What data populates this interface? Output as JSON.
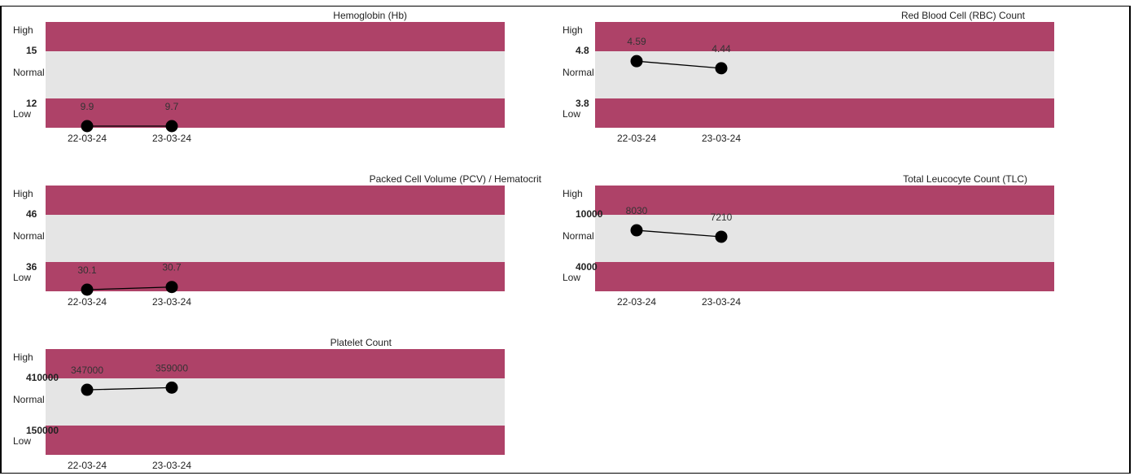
{
  "colors": {
    "band_out_of_range": "#ae4268",
    "band_normal": "#e5e5e5",
    "line": "#000000",
    "dot": "#000000"
  },
  "chart_data": [
    {
      "type": "line",
      "title": "Hemoglobin (Hb)",
      "high_label": "High",
      "normal_label": "Normal",
      "low_label": "Low",
      "upper_limit": "15",
      "lower_limit": "12",
      "categories": [
        "22-03-24",
        "23-03-24"
      ],
      "values": [
        9.9,
        9.7
      ],
      "value_labels": [
        "9.9",
        "9.7"
      ]
    },
    {
      "type": "line",
      "title": "Red Blood Cell (RBC) Count",
      "high_label": "High",
      "normal_label": "Normal",
      "low_label": "Low",
      "upper_limit": "4.8",
      "lower_limit": "3.8",
      "categories": [
        "22-03-24",
        "23-03-24"
      ],
      "values": [
        4.59,
        4.44
      ],
      "value_labels": [
        "4.59",
        "4.44"
      ]
    },
    {
      "type": "line",
      "title": "Packed Cell Volume (PCV) / Hematocrit",
      "high_label": "High",
      "normal_label": "Normal",
      "low_label": "Low",
      "upper_limit": "46",
      "lower_limit": "36",
      "categories": [
        "22-03-24",
        "23-03-24"
      ],
      "values": [
        30.1,
        30.7
      ],
      "value_labels": [
        "30.1",
        "30.7"
      ]
    },
    {
      "type": "line",
      "title": "Total Leucocyte Count (TLC)",
      "high_label": "High",
      "normal_label": "Normal",
      "low_label": "Low",
      "upper_limit": "10000",
      "lower_limit": "4000",
      "categories": [
        "22-03-24",
        "23-03-24"
      ],
      "values": [
        8030,
        7210
      ],
      "value_labels": [
        "8030",
        "7210"
      ]
    },
    {
      "type": "line",
      "title": "Platelet Count",
      "high_label": "High",
      "normal_label": "Normal",
      "low_label": "Low",
      "upper_limit": "410000",
      "lower_limit": "150000",
      "categories": [
        "22-03-24",
        "23-03-24"
      ],
      "values": [
        347000,
        359000
      ],
      "value_labels": [
        "347000",
        "359000"
      ]
    }
  ]
}
